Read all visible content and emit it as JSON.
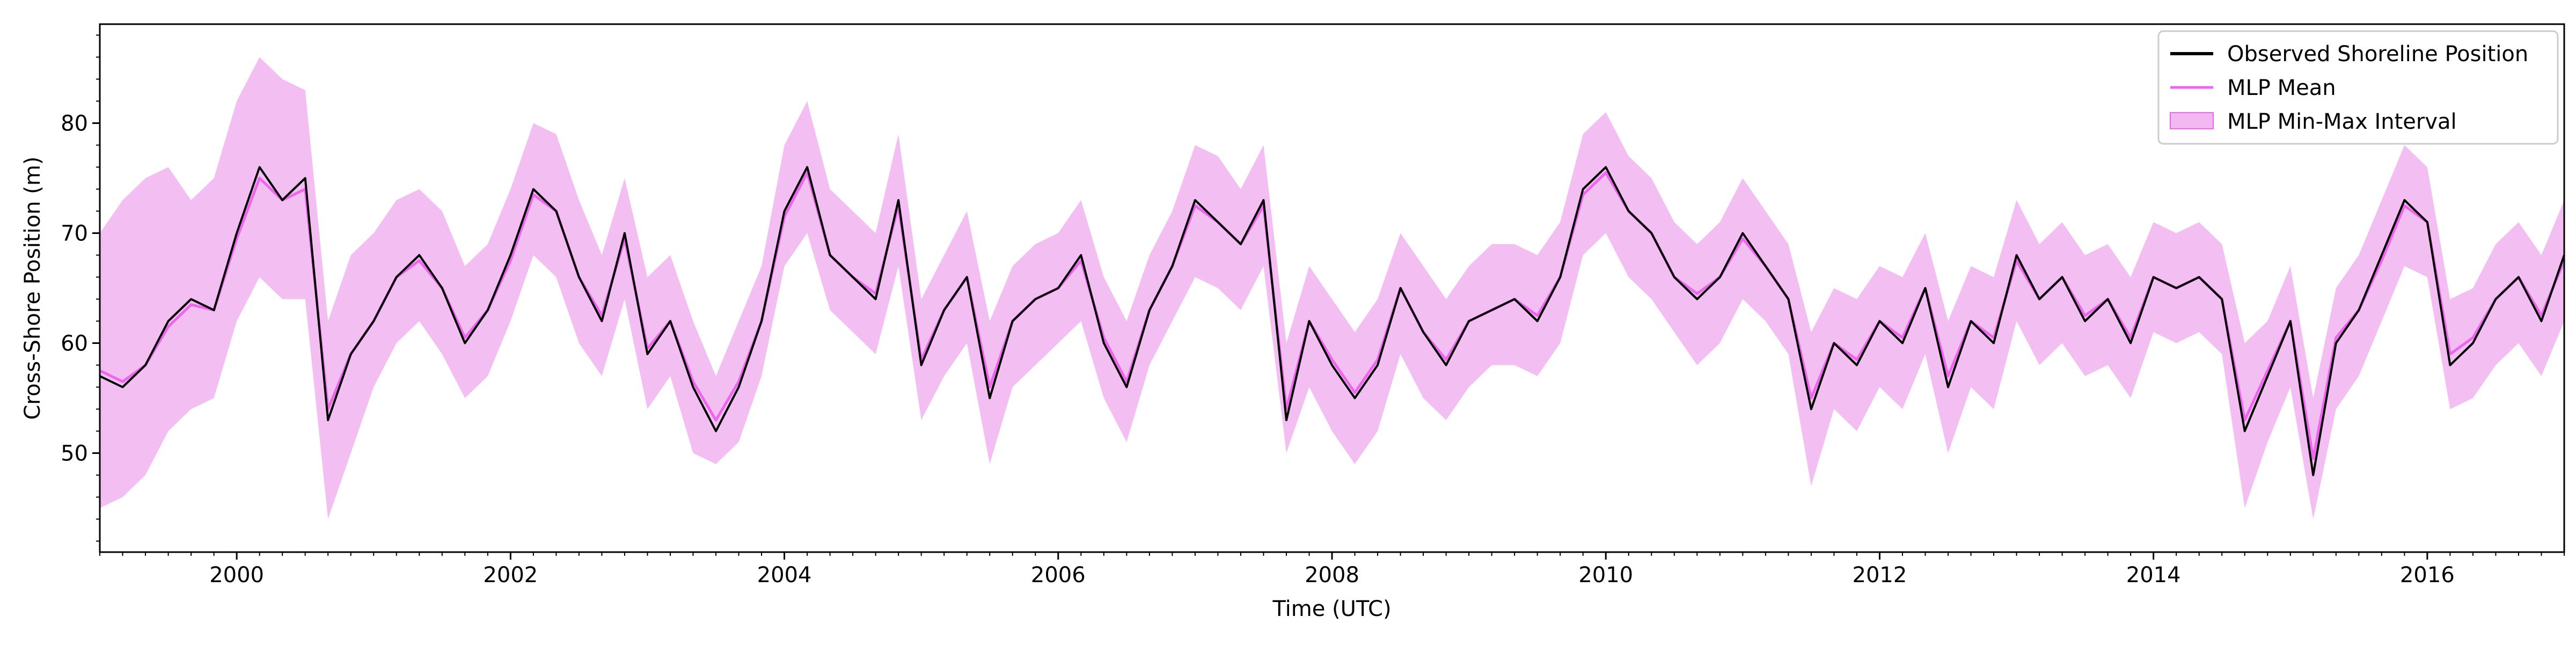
{
  "chart_data": {
    "type": "line",
    "title": "",
    "xlabel": "Time (UTC)",
    "ylabel": "Cross-Shore Position (m)",
    "xlim": [
      "1999-01-01",
      "2017-01-01"
    ],
    "ylim": [
      41,
      89
    ],
    "x_ticks": [
      "2000",
      "2002",
      "2004",
      "2006",
      "2008",
      "2010",
      "2012",
      "2014",
      "2016"
    ],
    "y_ticks": [
      "50",
      "60",
      "70",
      "80"
    ],
    "grid": false,
    "legend_position": "top-right",
    "legend": {
      "observed": "Observed Shoreline Position",
      "mean": "MLP Mean",
      "interval": "MLP Min-Max Interval"
    },
    "colors": {
      "observed": "#000000",
      "mean": "#ee66ee",
      "interval": "#f2b8f2"
    },
    "series": [
      {
        "name": "Observed Shoreline Position",
        "x": [
          "1999-01",
          "1999-03",
          "1999-05",
          "1999-07",
          "1999-09",
          "1999-11",
          "2000-01",
          "2000-03",
          "2000-05",
          "2000-07",
          "2000-09",
          "2000-11",
          "2001-01",
          "2001-03",
          "2001-05",
          "2001-07",
          "2001-09",
          "2001-11",
          "2002-01",
          "2002-03",
          "2002-05",
          "2002-07",
          "2002-09",
          "2002-11",
          "2003-01",
          "2003-03",
          "2003-05",
          "2003-07",
          "2003-09",
          "2003-11",
          "2004-01",
          "2004-03",
          "2004-05",
          "2004-07",
          "2004-09",
          "2004-11",
          "2005-01",
          "2005-03",
          "2005-05",
          "2005-07",
          "2005-09",
          "2005-11",
          "2006-01",
          "2006-03",
          "2006-05",
          "2006-07",
          "2006-09",
          "2006-11",
          "2007-01",
          "2007-03",
          "2007-05",
          "2007-07",
          "2007-09",
          "2007-11",
          "2008-01",
          "2008-03",
          "2008-05",
          "2008-07",
          "2008-09",
          "2008-11",
          "2009-01",
          "2009-03",
          "2009-05",
          "2009-07",
          "2009-09",
          "2009-11",
          "2010-01",
          "2010-03",
          "2010-05",
          "2010-07",
          "2010-09",
          "2010-11",
          "2011-01",
          "2011-03",
          "2011-05",
          "2011-07",
          "2011-09",
          "2011-11",
          "2012-01",
          "2012-03",
          "2012-05",
          "2012-07",
          "2012-09",
          "2012-11",
          "2013-01",
          "2013-03",
          "2013-05",
          "2013-07",
          "2013-09",
          "2013-11",
          "2014-01",
          "2014-03",
          "2014-05",
          "2014-07",
          "2014-09",
          "2014-11",
          "2015-01",
          "2015-03",
          "2015-05",
          "2015-07",
          "2015-09",
          "2015-11",
          "2016-01",
          "2016-03",
          "2016-05",
          "2016-07",
          "2016-09",
          "2016-11",
          "2017-01"
        ],
        "values": [
          57,
          56,
          58,
          62,
          64,
          63,
          70,
          76,
          73,
          75,
          53,
          59,
          62,
          66,
          68,
          65,
          60,
          63,
          68,
          74,
          72,
          66,
          62,
          70,
          59,
          62,
          56,
          52,
          56,
          62,
          72,
          76,
          68,
          66,
          64,
          73,
          58,
          63,
          66,
          55,
          62,
          64,
          65,
          68,
          60,
          56,
          63,
          67,
          73,
          71,
          69,
          73,
          53,
          62,
          58,
          55,
          58,
          65,
          61,
          58,
          62,
          63,
          64,
          62,
          66,
          74,
          76,
          72,
          70,
          66,
          64,
          66,
          70,
          67,
          64,
          54,
          60,
          58,
          62,
          60,
          65,
          56,
          62,
          60,
          68,
          64,
          66,
          62,
          64,
          60,
          66,
          65,
          66,
          64,
          52,
          57,
          62,
          48,
          60,
          63,
          68,
          73,
          71,
          58,
          60,
          64,
          66,
          62,
          68
        ]
      },
      {
        "name": "MLP Mean",
        "x": [
          "1999-01",
          "1999-03",
          "1999-05",
          "1999-07",
          "1999-09",
          "1999-11",
          "2000-01",
          "2000-03",
          "2000-05",
          "2000-07",
          "2000-09",
          "2000-11",
          "2001-01",
          "2001-03",
          "2001-05",
          "2001-07",
          "2001-09",
          "2001-11",
          "2002-01",
          "2002-03",
          "2002-05",
          "2002-07",
          "2002-09",
          "2002-11",
          "2003-01",
          "2003-03",
          "2003-05",
          "2003-07",
          "2003-09",
          "2003-11",
          "2004-01",
          "2004-03",
          "2004-05",
          "2004-07",
          "2004-09",
          "2004-11",
          "2005-01",
          "2005-03",
          "2005-05",
          "2005-07",
          "2005-09",
          "2005-11",
          "2006-01",
          "2006-03",
          "2006-05",
          "2006-07",
          "2006-09",
          "2006-11",
          "2007-01",
          "2007-03",
          "2007-05",
          "2007-07",
          "2007-09",
          "2007-11",
          "2008-01",
          "2008-03",
          "2008-05",
          "2008-07",
          "2008-09",
          "2008-11",
          "2009-01",
          "2009-03",
          "2009-05",
          "2009-07",
          "2009-09",
          "2009-11",
          "2010-01",
          "2010-03",
          "2010-05",
          "2010-07",
          "2010-09",
          "2010-11",
          "2011-01",
          "2011-03",
          "2011-05",
          "2011-07",
          "2011-09",
          "2011-11",
          "2012-01",
          "2012-03",
          "2012-05",
          "2012-07",
          "2012-09",
          "2012-11",
          "2013-01",
          "2013-03",
          "2013-05",
          "2013-07",
          "2013-09",
          "2013-11",
          "2014-01",
          "2014-03",
          "2014-05",
          "2014-07",
          "2014-09",
          "2014-11",
          "2015-01",
          "2015-03",
          "2015-05",
          "2015-07",
          "2015-09",
          "2015-11",
          "2016-01",
          "2016-03",
          "2016-05",
          "2016-07",
          "2016-09",
          "2016-11",
          "2017-01"
        ],
        "values": [
          57.5,
          56.5,
          58,
          61.5,
          63.5,
          63,
          69.5,
          75,
          73,
          74,
          54,
          59,
          62,
          66,
          67.5,
          65,
          60.5,
          63,
          67.5,
          73.5,
          72,
          66,
          62.5,
          69.5,
          59.5,
          62,
          56.5,
          53,
          56.5,
          62,
          71.5,
          75.5,
          68,
          66,
          64.5,
          72.5,
          58.5,
          63,
          66,
          56,
          62,
          64,
          65,
          67.5,
          60.5,
          56.5,
          63,
          67,
          72.5,
          71,
          69,
          72.5,
          54,
          62,
          58.5,
          55.5,
          58.5,
          65,
          61,
          58.5,
          62,
          63,
          64,
          62.5,
          66,
          73.5,
          75.5,
          72,
          70,
          66,
          64.5,
          66,
          69.5,
          67,
          64,
          55,
          60,
          58.5,
          62,
          60.5,
          65,
          57,
          62,
          60.5,
          67.5,
          64,
          66,
          62.5,
          64,
          60.5,
          66,
          65,
          66,
          64,
          53,
          57.5,
          62,
          49.5,
          60.5,
          63,
          67.5,
          72.5,
          71,
          59,
          60.5,
          64,
          66,
          62.5,
          67.5
        ]
      },
      {
        "name": "MLP Min-Max Interval",
        "x": [
          "1999-01",
          "1999-03",
          "1999-05",
          "1999-07",
          "1999-09",
          "1999-11",
          "2000-01",
          "2000-03",
          "2000-05",
          "2000-07",
          "2000-09",
          "2000-11",
          "2001-01",
          "2001-03",
          "2001-05",
          "2001-07",
          "2001-09",
          "2001-11",
          "2002-01",
          "2002-03",
          "2002-05",
          "2002-07",
          "2002-09",
          "2002-11",
          "2003-01",
          "2003-03",
          "2003-05",
          "2003-07",
          "2003-09",
          "2003-11",
          "2004-01",
          "2004-03",
          "2004-05",
          "2004-07",
          "2004-09",
          "2004-11",
          "2005-01",
          "2005-03",
          "2005-05",
          "2005-07",
          "2005-09",
          "2005-11",
          "2006-01",
          "2006-03",
          "2006-05",
          "2006-07",
          "2006-09",
          "2006-11",
          "2007-01",
          "2007-03",
          "2007-05",
          "2007-07",
          "2007-09",
          "2007-11",
          "2008-01",
          "2008-03",
          "2008-05",
          "2008-07",
          "2008-09",
          "2008-11",
          "2009-01",
          "2009-03",
          "2009-05",
          "2009-07",
          "2009-09",
          "2009-11",
          "2010-01",
          "2010-03",
          "2010-05",
          "2010-07",
          "2010-09",
          "2010-11",
          "2011-01",
          "2011-03",
          "2011-05",
          "2011-07",
          "2011-09",
          "2011-11",
          "2012-01",
          "2012-03",
          "2012-05",
          "2012-07",
          "2012-09",
          "2012-11",
          "2013-01",
          "2013-03",
          "2013-05",
          "2013-07",
          "2013-09",
          "2013-11",
          "2014-01",
          "2014-03",
          "2014-05",
          "2014-07",
          "2014-09",
          "2014-11",
          "2015-01",
          "2015-03",
          "2015-05",
          "2015-07",
          "2015-09",
          "2015-11",
          "2016-01",
          "2016-03",
          "2016-05",
          "2016-07",
          "2016-09",
          "2016-11",
          "2017-01"
        ],
        "lower": [
          45,
          46,
          48,
          52,
          54,
          55,
          62,
          66,
          64,
          64,
          44,
          50,
          56,
          60,
          62,
          59,
          55,
          57,
          62,
          68,
          66,
          60,
          57,
          64,
          54,
          57,
          50,
          49,
          51,
          57,
          67,
          70,
          63,
          61,
          59,
          67,
          53,
          57,
          60,
          49,
          56,
          58,
          60,
          62,
          55,
          51,
          58,
          62,
          66,
          65,
          63,
          67,
          50,
          56,
          52,
          49,
          52,
          59,
          55,
          53,
          56,
          58,
          58,
          57,
          60,
          68,
          70,
          66,
          64,
          61,
          58,
          60,
          64,
          62,
          59,
          47,
          54,
          52,
          56,
          54,
          59,
          50,
          56,
          54,
          62,
          58,
          60,
          57,
          58,
          55,
          61,
          60,
          61,
          59,
          45,
          51,
          56,
          44,
          54,
          57,
          62,
          67,
          66,
          54,
          55,
          58,
          60,
          57,
          62
        ],
        "upper": [
          70,
          73,
          75,
          76,
          73,
          75,
          82,
          86,
          84,
          83,
          62,
          68,
          70,
          73,
          74,
          72,
          67,
          69,
          74,
          80,
          79,
          73,
          68,
          75,
          66,
          68,
          62,
          57,
          62,
          67,
          78,
          82,
          74,
          72,
          70,
          79,
          64,
          68,
          72,
          62,
          67,
          69,
          70,
          73,
          66,
          62,
          68,
          72,
          78,
          77,
          74,
          78,
          60,
          67,
          64,
          61,
          64,
          70,
          67,
          64,
          67,
          69,
          69,
          68,
          71,
          79,
          81,
          77,
          75,
          71,
          69,
          71,
          75,
          72,
          69,
          61,
          65,
          64,
          67,
          66,
          70,
          62,
          67,
          66,
          73,
          69,
          71,
          68,
          69,
          66,
          71,
          70,
          71,
          69,
          60,
          62,
          67,
          55,
          65,
          68,
          73,
          78,
          76,
          64,
          65,
          69,
          71,
          68,
          73
        ]
      }
    ]
  }
}
